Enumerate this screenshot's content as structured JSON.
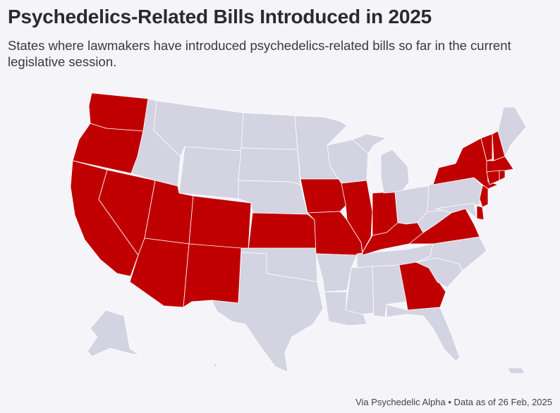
{
  "header": {
    "title": "Psychedelics-Related Bills Introduced in 2025",
    "subtitle": "States where lawmakers have introduced psychedelics-related bills so far in the current legislative session."
  },
  "footer": {
    "credit": "Via Psychedelic Alpha • Data as of 26 Feb, 2025"
  },
  "colors": {
    "bill_introduced": "#c00000",
    "no_bill": "#d3d3e2",
    "background": "#f4f4f9"
  },
  "map": {
    "highlighted_states": [
      "WA",
      "OR",
      "CA",
      "NV",
      "UT",
      "AZ",
      "CO",
      "NM",
      "KS",
      "IA",
      "MO",
      "IL",
      "IN",
      "KY",
      "VA",
      "GA",
      "NY",
      "VT",
      "NH",
      "MA",
      "CT",
      "RI",
      "NJ",
      "DE"
    ],
    "other_states": [
      "ID",
      "MT",
      "WY",
      "ND",
      "SD",
      "NE",
      "OK",
      "TX",
      "MN",
      "WI",
      "MI",
      "AR",
      "LA",
      "MS",
      "AL",
      "TN",
      "OH",
      "WV",
      "PA",
      "MD",
      "ME",
      "NC",
      "SC",
      "FL",
      "AK",
      "HI"
    ]
  }
}
